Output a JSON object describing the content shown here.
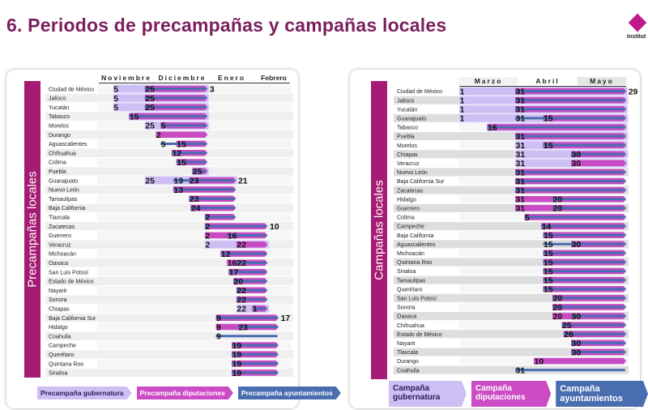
{
  "title": "6. Periodos de precampañas y campañas locales",
  "logo_text": "Institut",
  "colors": {
    "gubernatura": "#cdbff4",
    "diputaciones": "#c94bc4",
    "ayuntamientos": "#4a6db0",
    "band": "#a51a72",
    "title": "#7b1f5e"
  },
  "chart_data": [
    {
      "type": "gantt",
      "title": "Precampañas locales",
      "months": [
        "Noviembre",
        "Diciembre",
        "Enero",
        "Febrero"
      ],
      "legend": {
        "gub": "Precampaña gubernatura",
        "dip": "Precampaña diputaciones",
        "ayu": "Precampaña ayuntamientos"
      },
      "rows": [
        {
          "name": "Ciudad de México",
          "bars": [
            [
              "gub",
              "11-05",
              "01-03"
            ],
            [
              "dip",
              "11-25",
              "01-03"
            ],
            [
              "ayu",
              "11-25",
              "01-03"
            ]
          ],
          "end_label": "3"
        },
        {
          "name": "Jalisco",
          "bars": [
            [
              "gub",
              "11-05",
              "01-03"
            ],
            [
              "dip",
              "11-25",
              "01-03"
            ],
            [
              "ayu",
              "11-25",
              "01-03"
            ]
          ]
        },
        {
          "name": "Yucatán",
          "bars": [
            [
              "gub",
              "11-05",
              "01-03"
            ],
            [
              "dip",
              "11-25",
              "01-03"
            ],
            [
              "ayu",
              "11-25",
              "01-03"
            ]
          ]
        },
        {
          "name": "Tabasco",
          "bars": [
            [
              "gub",
              "11-15",
              "01-03"
            ],
            [
              "dip",
              "11-15",
              "01-03"
            ],
            [
              "ayu",
              "11-15",
              "01-03"
            ]
          ]
        },
        {
          "name": "Morelos",
          "bars": [
            [
              "gub",
              "11-25",
              "01-03"
            ],
            [
              "dip",
              "12-05",
              "01-03"
            ],
            [
              "ayu",
              "12-05",
              "01-03"
            ]
          ]
        },
        {
          "name": "Durango",
          "bars": [
            [
              "dip",
              "12-02",
              "01-03"
            ]
          ]
        },
        {
          "name": "Aguascalientes",
          "bars": [
            [
              "dip",
              "12-15",
              "01-03"
            ],
            [
              "ayu",
              "12-05",
              "01-03"
            ]
          ]
        },
        {
          "name": "Chihuahua",
          "bars": [
            [
              "dip",
              "12-12",
              "01-03"
            ],
            [
              "ayu",
              "12-12",
              "01-03"
            ]
          ]
        },
        {
          "name": "Colima",
          "bars": [
            [
              "dip",
              "12-15",
              "01-03"
            ],
            [
              "ayu",
              "12-15",
              "01-03"
            ]
          ]
        },
        {
          "name": "Puebla",
          "bars": [
            [
              "gub",
              "12-25",
              "01-03"
            ],
            [
              "dip",
              "12-25",
              "01-03"
            ],
            [
              "ayu",
              "12-25",
              "01-03"
            ]
          ]
        },
        {
          "name": "Guanajuato",
          "bars": [
            [
              "gub",
              "11-25",
              "01-21"
            ],
            [
              "dip",
              "12-23",
              "01-21"
            ],
            [
              "ayu",
              "12-13",
              "01-21"
            ]
          ],
          "end_label": "21"
        },
        {
          "name": "Nuevo León",
          "bars": [
            [
              "dip",
              "12-13",
              "01-21"
            ],
            [
              "ayu",
              "12-13",
              "01-21"
            ]
          ]
        },
        {
          "name": "Tamaulipas",
          "bars": [
            [
              "dip",
              "12-23",
              "01-21"
            ],
            [
              "ayu",
              "12-23",
              "01-21"
            ]
          ]
        },
        {
          "name": "Baja California",
          "bars": [
            [
              "dip",
              "12-24",
              "01-21"
            ],
            [
              "ayu",
              "12-24",
              "01-21"
            ]
          ]
        },
        {
          "name": "Tlaxcala",
          "bars": [
            [
              "dip",
              "01-02",
              "01-21"
            ],
            [
              "ayu",
              "01-02",
              "01-21"
            ]
          ]
        },
        {
          "name": "Zacatecas",
          "bars": [
            [
              "dip",
              "01-02",
              "02-10"
            ],
            [
              "ayu",
              "01-02",
              "02-10"
            ]
          ],
          "end_label": "10"
        },
        {
          "name": "Guerrero",
          "bars": [
            [
              "dip",
              "01-02",
              "02-10"
            ],
            [
              "ayu",
              "01-16",
              "02-10"
            ]
          ]
        },
        {
          "name": "Veracruz",
          "bars": [
            [
              "gub",
              "01-02",
              "02-10"
            ],
            [
              "dip",
              "01-22",
              "02-10"
            ]
          ]
        },
        {
          "name": "Michoacán",
          "bars": [
            [
              "dip",
              "01-12",
              "02-10"
            ],
            [
              "ayu",
              "01-12",
              "02-10"
            ]
          ]
        },
        {
          "name": "Oaxaca",
          "bars": [
            [
              "dip",
              "01-16",
              "02-10"
            ],
            [
              "ayu",
              "01-22",
              "02-10"
            ]
          ]
        },
        {
          "name": "San Luis Potosí",
          "bars": [
            [
              "dip",
              "01-17",
              "02-10"
            ],
            [
              "ayu",
              "01-17",
              "02-10"
            ]
          ]
        },
        {
          "name": "Estado de México",
          "bars": [
            [
              "dip",
              "01-20",
              "02-10"
            ],
            [
              "ayu",
              "01-20",
              "02-10"
            ]
          ]
        },
        {
          "name": "Nayarit",
          "bars": [
            [
              "dip",
              "01-22",
              "02-10"
            ],
            [
              "ayu",
              "01-22",
              "02-10"
            ]
          ]
        },
        {
          "name": "Sonora",
          "bars": [
            [
              "dip",
              "01-22",
              "02-10"
            ],
            [
              "ayu",
              "01-22",
              "02-10"
            ]
          ]
        },
        {
          "name": "Chiapas",
          "bars": [
            [
              "gub",
              "01-22",
              "02-10"
            ],
            [
              "dip",
              "02-01",
              "02-10"
            ],
            [
              "ayu",
              "02-01",
              "02-10"
            ]
          ]
        },
        {
          "name": "Baja California Sur",
          "bars": [
            [
              "dip",
              "01-09",
              "02-17"
            ],
            [
              "ayu",
              "01-09",
              "02-17"
            ]
          ],
          "end_label": "17"
        },
        {
          "name": "Hidalgo",
          "bars": [
            [
              "dip",
              "01-09",
              "02-17"
            ],
            [
              "ayu",
              "01-23",
              "02-17"
            ]
          ]
        },
        {
          "name": "Coahuila",
          "bars": [
            [
              "ayu",
              "01-09",
              "02-17"
            ]
          ]
        },
        {
          "name": "Campeche",
          "bars": [
            [
              "dip",
              "01-19",
              "02-17"
            ],
            [
              "ayu",
              "01-19",
              "02-17"
            ]
          ]
        },
        {
          "name": "Querétaro",
          "bars": [
            [
              "dip",
              "01-19",
              "02-17"
            ],
            [
              "ayu",
              "01-19",
              "02-17"
            ]
          ]
        },
        {
          "name": "Quintana Roo",
          "bars": [
            [
              "dip",
              "01-19",
              "02-17"
            ],
            [
              "ayu",
              "01-19",
              "02-17"
            ]
          ]
        },
        {
          "name": "Sinaloa",
          "bars": [
            [
              "dip",
              "01-19",
              "02-17"
            ],
            [
              "ayu",
              "01-19",
              "02-17"
            ]
          ]
        }
      ]
    },
    {
      "type": "gantt",
      "title": "Campañas locales",
      "months": [
        "Marzo",
        "Abril",
        "Mayo"
      ],
      "legend": {
        "gub": "Campaña gubernatura",
        "dip": "Campaña diputaciones",
        "ayu": "Campaña ayuntamientos"
      },
      "rows": [
        {
          "name": "Ciudad de México",
          "bars": [
            [
              "gub",
              "03-01",
              "05-29"
            ],
            [
              "dip",
              "03-31",
              "05-29"
            ],
            [
              "ayu",
              "03-31",
              "05-29"
            ]
          ],
          "end_label": "29"
        },
        {
          "name": "Jalisco",
          "bars": [
            [
              "gub",
              "03-01",
              "05-29"
            ],
            [
              "dip",
              "03-31",
              "05-29"
            ],
            [
              "ayu",
              "03-31",
              "05-29"
            ]
          ]
        },
        {
          "name": "Yucatán",
          "bars": [
            [
              "gub",
              "03-01",
              "05-29"
            ],
            [
              "dip",
              "03-31",
              "05-29"
            ],
            [
              "ayu",
              "03-31",
              "05-29"
            ]
          ]
        },
        {
          "name": "Guanajuato",
          "bars": [
            [
              "gub",
              "03-01",
              "05-29"
            ],
            [
              "dip",
              "04-15",
              "05-29"
            ],
            [
              "ayu",
              "03-31",
              "05-29"
            ]
          ]
        },
        {
          "name": "Tabasco",
          "bars": [
            [
              "gub",
              "03-16",
              "05-29"
            ],
            [
              "dip",
              "03-16",
              "05-29"
            ],
            [
              "ayu",
              "03-16",
              "05-29"
            ]
          ]
        },
        {
          "name": "Puebla",
          "bars": [
            [
              "gub",
              "03-31",
              "05-29"
            ],
            [
              "dip",
              "03-31",
              "05-29"
            ],
            [
              "ayu",
              "03-31",
              "05-29"
            ]
          ]
        },
        {
          "name": "Morelos",
          "bars": [
            [
              "gub",
              "03-31",
              "05-29"
            ],
            [
              "dip",
              "04-15",
              "05-29"
            ],
            [
              "ayu",
              "04-15",
              "05-29"
            ]
          ]
        },
        {
          "name": "Chiapas",
          "bars": [
            [
              "gub",
              "03-31",
              "05-29"
            ],
            [
              "dip",
              "04-30",
              "05-29"
            ],
            [
              "ayu",
              "04-30",
              "05-29"
            ]
          ]
        },
        {
          "name": "Veracruz",
          "bars": [
            [
              "gub",
              "03-31",
              "05-29"
            ],
            [
              "dip",
              "04-30",
              "05-29"
            ]
          ]
        },
        {
          "name": "Nuevo León",
          "bars": [
            [
              "dip",
              "03-31",
              "05-29"
            ],
            [
              "ayu",
              "03-31",
              "05-29"
            ]
          ]
        },
        {
          "name": "Baja California Sur",
          "bars": [
            [
              "dip",
              "03-31",
              "05-29"
            ],
            [
              "ayu",
              "03-31",
              "05-29"
            ]
          ]
        },
        {
          "name": "Zacatecas",
          "bars": [
            [
              "dip",
              "03-31",
              "05-29"
            ],
            [
              "ayu",
              "03-31",
              "05-29"
            ]
          ]
        },
        {
          "name": "Hidalgo",
          "bars": [
            [
              "dip",
              "03-31",
              "05-29"
            ],
            [
              "ayu",
              "04-20",
              "05-29"
            ]
          ]
        },
        {
          "name": "Guerrero",
          "bars": [
            [
              "dip",
              "03-31",
              "05-29"
            ],
            [
              "ayu",
              "04-20",
              "05-29"
            ]
          ]
        },
        {
          "name": "Colima",
          "bars": [
            [
              "dip",
              "04-05",
              "05-29"
            ],
            [
              "ayu",
              "04-05",
              "05-29"
            ]
          ]
        },
        {
          "name": "Campeche",
          "bars": [
            [
              "dip",
              "04-14",
              "05-29"
            ],
            [
              "ayu",
              "04-14",
              "05-29"
            ]
          ]
        },
        {
          "name": "Baja California",
          "bars": [
            [
              "dip",
              "04-15",
              "05-29"
            ],
            [
              "ayu",
              "04-15",
              "05-29"
            ]
          ]
        },
        {
          "name": "Aguascalientes",
          "bars": [
            [
              "dip",
              "04-30",
              "05-29"
            ],
            [
              "ayu",
              "04-15",
              "05-29"
            ]
          ]
        },
        {
          "name": "Michoacán",
          "bars": [
            [
              "dip",
              "04-15",
              "05-29"
            ],
            [
              "ayu",
              "04-15",
              "05-29"
            ]
          ]
        },
        {
          "name": "Quintana Roo",
          "bars": [
            [
              "dip",
              "04-15",
              "05-29"
            ],
            [
              "ayu",
              "04-15",
              "05-29"
            ]
          ]
        },
        {
          "name": "Sinaloa",
          "bars": [
            [
              "dip",
              "04-15",
              "05-29"
            ],
            [
              "ayu",
              "04-15",
              "05-29"
            ]
          ]
        },
        {
          "name": "Tamaulipas",
          "bars": [
            [
              "dip",
              "04-15",
              "05-29"
            ],
            [
              "ayu",
              "04-15",
              "05-29"
            ]
          ]
        },
        {
          "name": "Querétaro",
          "bars": [
            [
              "dip",
              "04-15",
              "05-29"
            ],
            [
              "ayu",
              "04-15",
              "05-29"
            ]
          ]
        },
        {
          "name": "San Luis Potosí",
          "bars": [
            [
              "dip",
              "04-20",
              "05-29"
            ],
            [
              "ayu",
              "04-20",
              "05-29"
            ]
          ]
        },
        {
          "name": "Sonora",
          "bars": [
            [
              "dip",
              "04-20",
              "05-29"
            ],
            [
              "ayu",
              "04-20",
              "05-29"
            ]
          ]
        },
        {
          "name": "Oaxaca",
          "bars": [
            [
              "dip",
              "04-20",
              "05-29"
            ],
            [
              "ayu",
              "04-30",
              "05-29"
            ]
          ]
        },
        {
          "name": "Chihuahua",
          "bars": [
            [
              "dip",
              "04-25",
              "05-29"
            ],
            [
              "ayu",
              "04-25",
              "05-29"
            ]
          ]
        },
        {
          "name": "Estado de México",
          "bars": [
            [
              "dip",
              "04-26",
              "05-29"
            ],
            [
              "ayu",
              "04-26",
              "05-29"
            ]
          ]
        },
        {
          "name": "Nayarit",
          "bars": [
            [
              "dip",
              "04-30",
              "05-29"
            ],
            [
              "ayu",
              "04-30",
              "05-29"
            ]
          ]
        },
        {
          "name": "Tlaxcala",
          "bars": [
            [
              "dip",
              "04-30",
              "05-29"
            ],
            [
              "ayu",
              "04-30",
              "05-29"
            ]
          ]
        },
        {
          "name": "Durango",
          "bars": [
            [
              "dip",
              "04-10",
              "05-29"
            ]
          ]
        },
        {
          "name": "Coahuila",
          "bars": [
            [
              "ayu",
              "03-31",
              "05-29"
            ]
          ]
        }
      ]
    }
  ]
}
